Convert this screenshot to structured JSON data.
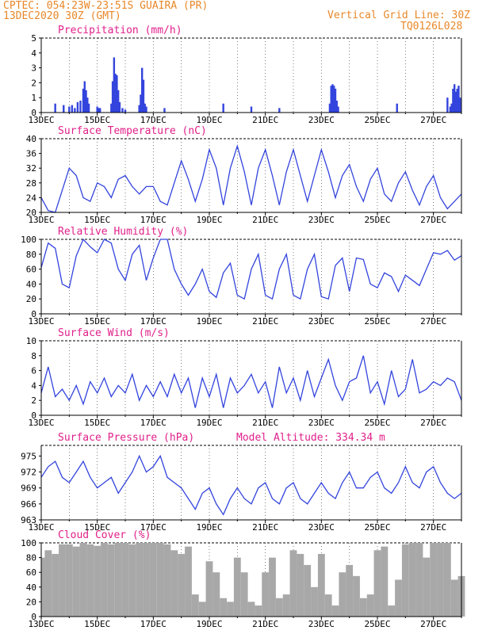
{
  "header": {
    "line1_left": "CPTEC:   054:23W-23:51S   GUAIRA (PR)",
    "line2_left": "13DEC2020 30Z (GMT)",
    "line1_right": "Vertical Grid Line: 30Z",
    "line2_right": "TQ0126L028"
  },
  "colors": {
    "series": "#3344dd",
    "cloud": "#a8a8a8",
    "title": "#e0208a",
    "header": "#e8882a"
  },
  "date_labels": [
    "13DEC",
    "15DEC",
    "17DEC",
    "19DEC",
    "21DEC",
    "23DEC",
    "25DEC",
    "27DEC"
  ],
  "chart_data": [
    {
      "id": "precip",
      "type": "bar",
      "title": "Precipitation (mm/h)",
      "ylim": [
        0,
        5
      ],
      "yticks": [
        "0",
        "1",
        "2",
        "3",
        "4",
        "5"
      ],
      "x_day": [
        0.5,
        0.8,
        1.0,
        1.1,
        1.2,
        1.3,
        1.4,
        1.5,
        1.55,
        1.6,
        1.65,
        1.7,
        2.0,
        2.05,
        2.1,
        2.5,
        2.55,
        2.6,
        2.65,
        2.7,
        2.75,
        2.8,
        2.9,
        3.0,
        3.5,
        3.55,
        3.6,
        3.65,
        3.7,
        3.75,
        4.4,
        6.5,
        7.5,
        8.5,
        10.3,
        10.35,
        10.4,
        10.45,
        10.5,
        10.55,
        10.6,
        12.7,
        14.5,
        14.6,
        14.65,
        14.7,
        14.75,
        14.8,
        14.85,
        14.9,
        14.95
      ],
      "values": [
        0.6,
        0.5,
        0.4,
        0.5,
        0.3,
        0.7,
        0.8,
        1.6,
        2.1,
        1.5,
        1.0,
        0.6,
        0.4,
        0.3,
        0.3,
        0.6,
        2.1,
        3.7,
        2.6,
        2.5,
        1.5,
        0.7,
        0.3,
        0.2,
        0.5,
        1.2,
        3.0,
        2.2,
        0.6,
        0.4,
        0.3,
        0.6,
        0.4,
        0.3,
        0.6,
        1.8,
        1.9,
        1.8,
        1.6,
        0.8,
        0.4,
        0.6,
        1.0,
        0.4,
        0.6,
        1.6,
        1.9,
        1.4,
        1.6,
        1.8,
        1.0
      ]
    },
    {
      "id": "temp",
      "type": "line",
      "title": "Surface Temperature (nC)",
      "ylim": [
        20,
        40
      ],
      "yticks": [
        "20",
        "24",
        "28",
        "32",
        "36",
        "40"
      ],
      "x_day": [
        0,
        0.25,
        0.5,
        0.75,
        1.0,
        1.25,
        1.5,
        1.75,
        2.0,
        2.25,
        2.5,
        2.75,
        3.0,
        3.25,
        3.5,
        3.75,
        4.0,
        4.25,
        4.5,
        4.75,
        5.0,
        5.25,
        5.5,
        5.75,
        6.0,
        6.25,
        6.5,
        6.75,
        7.0,
        7.25,
        7.5,
        7.75,
        8.0,
        8.25,
        8.5,
        8.75,
        9.0,
        9.25,
        9.5,
        9.75,
        10.0,
        10.25,
        10.5,
        10.75,
        11.0,
        11.25,
        11.5,
        11.75,
        12.0,
        12.25,
        12.5,
        12.75,
        13.0,
        13.25,
        13.5,
        13.75,
        14.0,
        14.25,
        14.5,
        14.75,
        15.0
      ],
      "values": [
        24,
        20.5,
        20,
        26,
        32,
        30,
        24,
        23,
        28,
        27,
        24,
        29,
        30,
        27,
        25,
        27,
        27,
        23,
        22,
        28,
        34,
        29,
        23,
        29,
        37,
        32,
        22,
        32,
        38,
        31,
        22,
        32,
        37,
        30,
        22,
        31,
        37,
        30,
        23,
        30,
        37,
        31,
        24,
        30,
        33,
        27,
        23,
        29,
        32,
        25,
        23,
        28,
        31,
        26,
        22,
        27,
        30,
        24,
        21,
        23,
        25
      ]
    },
    {
      "id": "rh",
      "type": "line",
      "title": "Relative Humidity (%)",
      "ylim": [
        0,
        100
      ],
      "yticks": [
        "0",
        "20",
        "40",
        "60",
        "80",
        "100"
      ],
      "x_day": [
        0,
        0.25,
        0.5,
        0.75,
        1.0,
        1.25,
        1.5,
        1.75,
        2.0,
        2.25,
        2.5,
        2.75,
        3.0,
        3.25,
        3.5,
        3.75,
        4.0,
        4.25,
        4.5,
        4.75,
        5.0,
        5.25,
        5.5,
        5.75,
        6.0,
        6.25,
        6.5,
        6.75,
        7.0,
        7.25,
        7.5,
        7.75,
        8.0,
        8.25,
        8.5,
        8.75,
        9.0,
        9.25,
        9.5,
        9.75,
        10.0,
        10.25,
        10.5,
        10.75,
        11.0,
        11.25,
        11.5,
        11.75,
        12.0,
        12.25,
        12.5,
        12.75,
        13.0,
        13.25,
        13.5,
        13.75,
        14.0,
        14.25,
        14.5,
        14.75,
        15.0
      ],
      "values": [
        62,
        95,
        88,
        40,
        35,
        78,
        100,
        90,
        82,
        100,
        95,
        60,
        45,
        80,
        92,
        45,
        75,
        100,
        100,
        60,
        40,
        25,
        40,
        60,
        30,
        22,
        55,
        68,
        25,
        20,
        60,
        80,
        25,
        20,
        60,
        80,
        25,
        20,
        60,
        80,
        23,
        20,
        65,
        75,
        30,
        75,
        73,
        40,
        35,
        55,
        50,
        30,
        52,
        45,
        38,
        60,
        82,
        80,
        85,
        72,
        78
      ]
    },
    {
      "id": "wind",
      "type": "line",
      "title": "Surface Wind (m/s)",
      "ylim": [
        0,
        10
      ],
      "yticks": [
        "0",
        "2",
        "4",
        "6",
        "8",
        "10"
      ],
      "x_day": [
        0,
        0.25,
        0.5,
        0.75,
        1.0,
        1.25,
        1.5,
        1.75,
        2.0,
        2.25,
        2.5,
        2.75,
        3.0,
        3.25,
        3.5,
        3.75,
        4.0,
        4.25,
        4.5,
        4.75,
        5.0,
        5.25,
        5.5,
        5.75,
        6.0,
        6.25,
        6.5,
        6.75,
        7.0,
        7.25,
        7.5,
        7.75,
        8.0,
        8.25,
        8.5,
        8.75,
        9.0,
        9.25,
        9.5,
        9.75,
        10.0,
        10.25,
        10.5,
        10.75,
        11.0,
        11.25,
        11.5,
        11.75,
        12.0,
        12.25,
        12.5,
        12.75,
        13.0,
        13.25,
        13.5,
        13.75,
        14.0,
        14.25,
        14.5,
        14.75,
        15.0
      ],
      "values": [
        3.0,
        6.5,
        2.5,
        3.5,
        2.0,
        4.0,
        1.5,
        4.5,
        3.0,
        5.0,
        2.5,
        4.0,
        3.0,
        5.5,
        2.0,
        4.0,
        2.5,
        4.5,
        2.5,
        5.5,
        3.0,
        5.0,
        1.0,
        5.0,
        2.5,
        5.5,
        1.0,
        5.0,
        3.0,
        4.0,
        5.5,
        3.0,
        4.5,
        1.0,
        6.5,
        3.0,
        5.0,
        2.0,
        6.0,
        2.5,
        5.0,
        7.5,
        4.0,
        2.0,
        4.5,
        5.0,
        8.0,
        3.0,
        4.5,
        1.5,
        6.0,
        2.5,
        3.5,
        7.5,
        3.0,
        3.5,
        4.5,
        4.0,
        5.0,
        4.5,
        2.0
      ]
    },
    {
      "id": "pres",
      "type": "line",
      "title": "Surface Pressure (hPa)",
      "extra_label": "Model Altitude: 334.34 m",
      "ylim": [
        963,
        977
      ],
      "yticks": [
        "963",
        "966",
        "969",
        "972",
        "975"
      ],
      "x_day": [
        0,
        0.25,
        0.5,
        0.75,
        1.0,
        1.25,
        1.5,
        1.75,
        2.0,
        2.25,
        2.5,
        2.75,
        3.0,
        3.25,
        3.5,
        3.75,
        4.0,
        4.25,
        4.5,
        4.75,
        5.0,
        5.25,
        5.5,
        5.75,
        6.0,
        6.25,
        6.5,
        6.75,
        7.0,
        7.25,
        7.5,
        7.75,
        8.0,
        8.25,
        8.5,
        8.75,
        9.0,
        9.25,
        9.5,
        9.75,
        10.0,
        10.25,
        10.5,
        10.75,
        11.0,
        11.25,
        11.5,
        11.75,
        12.0,
        12.25,
        12.5,
        12.75,
        13.0,
        13.25,
        13.5,
        13.75,
        14.0,
        14.25,
        14.5,
        14.75,
        15.0
      ],
      "values": [
        971,
        973,
        974,
        971,
        970,
        972,
        974,
        971,
        969,
        970,
        971,
        968,
        970,
        972,
        975,
        972,
        973,
        975,
        971,
        970,
        969,
        967,
        965,
        968,
        969,
        966,
        964,
        967,
        969,
        967,
        966,
        969,
        970,
        967,
        966,
        969,
        970,
        967,
        966,
        968,
        970,
        968,
        967,
        970,
        972,
        969,
        969,
        971,
        972,
        969,
        968,
        970,
        973,
        970,
        969,
        972,
        973,
        970,
        968,
        967,
        968
      ]
    },
    {
      "id": "cloud",
      "type": "area",
      "title": "Cloud Cover (%)",
      "ylim": [
        0,
        100
      ],
      "yticks": [
        "0",
        "20",
        "40",
        "60",
        "80",
        "100"
      ],
      "x_day": [
        0,
        0.25,
        0.5,
        0.75,
        1.0,
        1.25,
        1.5,
        1.75,
        2.0,
        2.25,
        2.5,
        2.75,
        3.0,
        3.25,
        3.5,
        3.75,
        4.0,
        4.25,
        4.5,
        4.75,
        5.0,
        5.25,
        5.5,
        5.75,
        6.0,
        6.25,
        6.5,
        6.75,
        7.0,
        7.25,
        7.5,
        7.75,
        8.0,
        8.25,
        8.5,
        8.75,
        9.0,
        9.25,
        9.5,
        9.75,
        10.0,
        10.25,
        10.5,
        10.75,
        11.0,
        11.25,
        11.5,
        11.75,
        12.0,
        12.25,
        12.5,
        12.75,
        13.0,
        13.25,
        13.5,
        13.75,
        14.0,
        14.25,
        14.5,
        14.75,
        15.0
      ],
      "values": [
        80,
        90,
        85,
        98,
        98,
        95,
        100,
        98,
        96,
        100,
        98,
        100,
        100,
        98,
        100,
        100,
        100,
        100,
        98,
        90,
        85,
        95,
        30,
        20,
        75,
        60,
        25,
        20,
        80,
        60,
        20,
        15,
        60,
        80,
        25,
        30,
        90,
        85,
        70,
        40,
        85,
        30,
        15,
        60,
        70,
        55,
        25,
        30,
        90,
        95,
        15,
        50,
        98,
        100,
        100,
        80,
        100,
        100,
        100,
        50,
        55
      ]
    }
  ]
}
